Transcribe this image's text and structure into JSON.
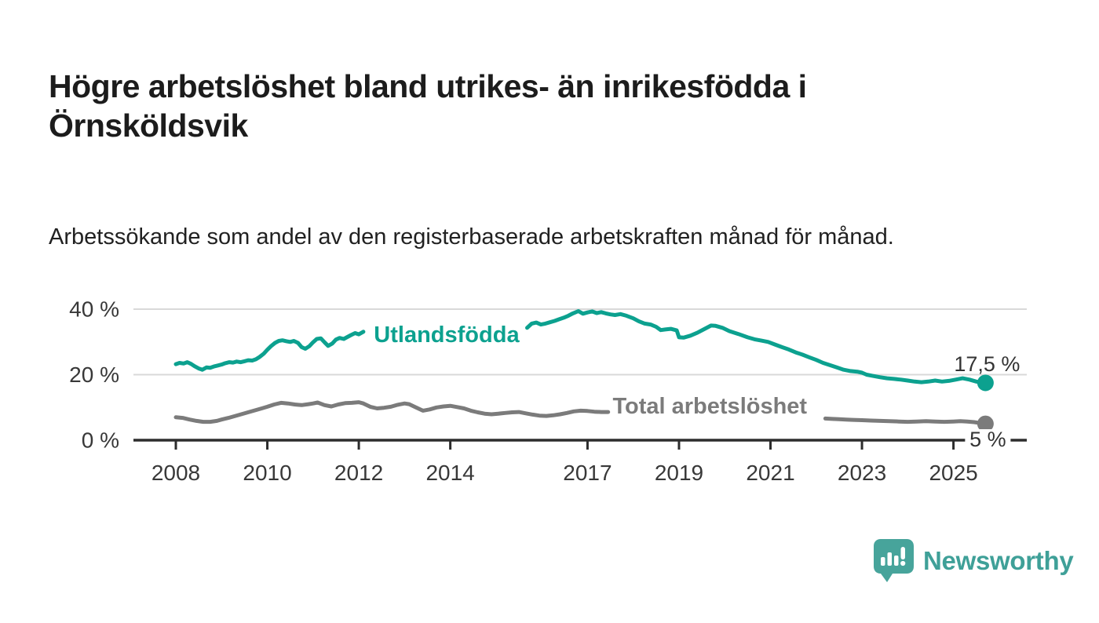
{
  "page": {
    "title": "Högre arbetslöshet bland utrikes- än inrikesfödda i Örnsköldsvik",
    "subtitle": "Arbetssökande som andel av den registerbaserade arbetskraften månad för månad.",
    "background_color": "#ffffff"
  },
  "branding": {
    "logo_text": "Newsworthy",
    "logo_icon": "speech-bubble-bar-chart-icon",
    "logo_color": "#47a49b"
  },
  "chart_data": {
    "type": "line",
    "title": "Högre arbetslöshet bland utrikes- än inrikesfödda i Örnsköldsvik",
    "subtitle": "Arbetssökande som andel av den registerbaserade arbetskraften månad för månad.",
    "unit": "percent of register-based labour force",
    "x_axis": {
      "tick_years": [
        2008,
        2010,
        2012,
        2014,
        2017,
        2019,
        2021,
        2023,
        2025
      ],
      "tick_labels": [
        "2008",
        "2010",
        "2012",
        "2014",
        "2017",
        "2019",
        "2021",
        "2023",
        "2025"
      ],
      "range_years": [
        2007.1,
        2026.6
      ]
    },
    "y_axis": {
      "tick_values": [
        0,
        20,
        40
      ],
      "tick_labels": [
        "0 %",
        "20 %",
        "40 %"
      ],
      "gridline_values": [
        20,
        40
      ],
      "range": [
        0,
        47
      ],
      "grid_color": "#d9d9d9",
      "axis_color": "#2d2d2d",
      "label_color": "#383838"
    },
    "series": [
      {
        "name": "Total arbetslöshet",
        "color": "#7b7b7b",
        "line_label": {
          "text": "Total arbetslöshet",
          "year": 2017.55,
          "value": 10.3
        },
        "end_annotation": "5 %",
        "last_point": {
          "year": 2025.7,
          "value": 5.0
        },
        "segments": [
          [
            [
              2008.0,
              7.0
            ],
            [
              2008.15,
              6.8
            ],
            [
              2008.3,
              6.3
            ],
            [
              2008.45,
              5.9
            ],
            [
              2008.6,
              5.6
            ],
            [
              2008.75,
              5.6
            ],
            [
              2008.9,
              5.9
            ],
            [
              2009.0,
              6.3
            ],
            [
              2009.15,
              6.8
            ],
            [
              2009.3,
              7.4
            ],
            [
              2009.45,
              8.0
            ],
            [
              2009.6,
              8.6
            ],
            [
              2009.75,
              9.2
            ],
            [
              2009.9,
              9.8
            ],
            [
              2010.0,
              10.2
            ],
            [
              2010.15,
              10.9
            ],
            [
              2010.3,
              11.4
            ],
            [
              2010.45,
              11.2
            ],
            [
              2010.6,
              10.9
            ],
            [
              2010.75,
              10.7
            ],
            [
              2010.9,
              11.0
            ],
            [
              2011.0,
              11.2
            ],
            [
              2011.1,
              11.5
            ],
            [
              2011.25,
              10.7
            ],
            [
              2011.4,
              10.3
            ],
            [
              2011.55,
              10.9
            ],
            [
              2011.7,
              11.3
            ],
            [
              2011.85,
              11.4
            ],
            [
              2012.0,
              11.6
            ],
            [
              2012.1,
              11.2
            ],
            [
              2012.25,
              10.2
            ],
            [
              2012.4,
              9.7
            ],
            [
              2012.55,
              9.9
            ],
            [
              2012.7,
              10.2
            ],
            [
              2012.85,
              10.8
            ],
            [
              2013.0,
              11.2
            ],
            [
              2013.1,
              11.0
            ],
            [
              2013.25,
              10.0
            ],
            [
              2013.4,
              9.0
            ],
            [
              2013.55,
              9.4
            ],
            [
              2013.7,
              10.0
            ],
            [
              2013.85,
              10.3
            ],
            [
              2014.0,
              10.5
            ],
            [
              2014.15,
              10.1
            ],
            [
              2014.3,
              9.7
            ],
            [
              2014.45,
              9.0
            ],
            [
              2014.6,
              8.5
            ],
            [
              2014.75,
              8.1
            ],
            [
              2014.9,
              7.9
            ],
            [
              2015.05,
              8.1
            ],
            [
              2015.2,
              8.3
            ],
            [
              2015.35,
              8.5
            ],
            [
              2015.5,
              8.6
            ],
            [
              2015.65,
              8.2
            ],
            [
              2015.8,
              7.8
            ],
            [
              2015.95,
              7.5
            ],
            [
              2016.1,
              7.4
            ],
            [
              2016.25,
              7.6
            ],
            [
              2016.4,
              7.9
            ],
            [
              2016.55,
              8.3
            ],
            [
              2016.7,
              8.8
            ],
            [
              2016.85,
              9.0
            ],
            [
              2017.0,
              8.9
            ],
            [
              2017.15,
              8.7
            ],
            [
              2017.3,
              8.6
            ],
            [
              2017.45,
              8.6
            ]
          ],
          [
            [
              2022.2,
              6.6
            ],
            [
              2022.35,
              6.5
            ],
            [
              2022.5,
              6.4
            ],
            [
              2022.65,
              6.3
            ],
            [
              2022.8,
              6.2
            ],
            [
              2023.0,
              6.1
            ],
            [
              2023.2,
              6.0
            ],
            [
              2023.4,
              5.9
            ],
            [
              2023.6,
              5.8
            ],
            [
              2023.8,
              5.7
            ],
            [
              2024.0,
              5.6
            ],
            [
              2024.2,
              5.7
            ],
            [
              2024.4,
              5.8
            ],
            [
              2024.6,
              5.7
            ],
            [
              2024.8,
              5.6
            ],
            [
              2025.0,
              5.7
            ],
            [
              2025.15,
              5.8
            ],
            [
              2025.3,
              5.7
            ],
            [
              2025.45,
              5.5
            ],
            [
              2025.6,
              5.2
            ],
            [
              2025.7,
              5.0
            ]
          ]
        ]
      },
      {
        "name": "Utlandsfödda",
        "color": "#0ca18f",
        "line_label": {
          "text": "Utlandsfödda",
          "year": 2012.33,
          "value": 32.1
        },
        "end_annotation": "17,5 %",
        "last_point": {
          "year": 2025.7,
          "value": 17.5
        },
        "segments": [
          [
            [
              2008.0,
              23.2
            ],
            [
              2008.08,
              23.6
            ],
            [
              2008.17,
              23.4
            ],
            [
              2008.25,
              23.8
            ],
            [
              2008.33,
              23.3
            ],
            [
              2008.42,
              22.5
            ],
            [
              2008.5,
              21.9
            ],
            [
              2008.58,
              21.5
            ],
            [
              2008.67,
              22.2
            ],
            [
              2008.75,
              22.1
            ],
            [
              2008.83,
              22.5
            ],
            [
              2008.92,
              22.8
            ],
            [
              2009.0,
              23.1
            ],
            [
              2009.08,
              23.5
            ],
            [
              2009.17,
              23.8
            ],
            [
              2009.25,
              23.7
            ],
            [
              2009.33,
              24.0
            ],
            [
              2009.42,
              23.8
            ],
            [
              2009.5,
              24.1
            ],
            [
              2009.58,
              24.4
            ],
            [
              2009.67,
              24.3
            ],
            [
              2009.75,
              24.7
            ],
            [
              2009.83,
              25.4
            ],
            [
              2009.92,
              26.4
            ],
            [
              2010.0,
              27.6
            ],
            [
              2010.08,
              28.7
            ],
            [
              2010.17,
              29.7
            ],
            [
              2010.25,
              30.3
            ],
            [
              2010.33,
              30.5
            ],
            [
              2010.42,
              30.2
            ],
            [
              2010.5,
              30.0
            ],
            [
              2010.58,
              30.3
            ],
            [
              2010.67,
              29.7
            ],
            [
              2010.75,
              28.4
            ],
            [
              2010.83,
              27.9
            ],
            [
              2010.92,
              28.7
            ],
            [
              2011.0,
              29.9
            ],
            [
              2011.08,
              30.9
            ],
            [
              2011.17,
              31.1
            ],
            [
              2011.25,
              29.9
            ],
            [
              2011.33,
              28.8
            ],
            [
              2011.42,
              29.5
            ],
            [
              2011.5,
              30.7
            ],
            [
              2011.58,
              31.2
            ],
            [
              2011.67,
              30.9
            ],
            [
              2011.75,
              31.5
            ],
            [
              2011.83,
              32.1
            ],
            [
              2011.92,
              32.7
            ],
            [
              2012.0,
              32.3
            ],
            [
              2012.1,
              33.1
            ]
          ],
          [
            [
              2015.68,
              34.3
            ],
            [
              2015.78,
              35.6
            ],
            [
              2015.88,
              35.9
            ],
            [
              2015.98,
              35.3
            ],
            [
              2016.08,
              35.6
            ],
            [
              2016.18,
              36.0
            ],
            [
              2016.28,
              36.4
            ],
            [
              2016.38,
              36.9
            ],
            [
              2016.48,
              37.4
            ],
            [
              2016.58,
              38.0
            ],
            [
              2016.68,
              38.7
            ],
            [
              2016.8,
              39.4
            ],
            [
              2016.9,
              38.6
            ],
            [
              2017.0,
              39.0
            ],
            [
              2017.1,
              39.3
            ],
            [
              2017.2,
              38.8
            ],
            [
              2017.3,
              39.1
            ],
            [
              2017.4,
              38.7
            ],
            [
              2017.5,
              38.4
            ],
            [
              2017.6,
              38.2
            ],
            [
              2017.72,
              38.5
            ],
            [
              2017.85,
              38.0
            ],
            [
              2018.0,
              37.2
            ],
            [
              2018.12,
              36.3
            ],
            [
              2018.25,
              35.6
            ],
            [
              2018.38,
              35.3
            ],
            [
              2018.5,
              34.6
            ],
            [
              2018.6,
              33.6
            ],
            [
              2018.7,
              33.8
            ],
            [
              2018.82,
              34.0
            ],
            [
              2018.95,
              33.5
            ],
            [
              2019.0,
              31.4
            ],
            [
              2019.1,
              31.3
            ],
            [
              2019.25,
              31.9
            ],
            [
              2019.4,
              32.8
            ],
            [
              2019.55,
              33.9
            ],
            [
              2019.7,
              35.0
            ],
            [
              2019.8,
              34.9
            ],
            [
              2019.95,
              34.3
            ],
            [
              2020.1,
              33.3
            ],
            [
              2020.3,
              32.4
            ],
            [
              2020.5,
              31.4
            ],
            [
              2020.65,
              30.8
            ],
            [
              2020.8,
              30.4
            ],
            [
              2020.95,
              30.0
            ],
            [
              2021.1,
              29.2
            ],
            [
              2021.25,
              28.4
            ],
            [
              2021.4,
              27.7
            ],
            [
              2021.55,
              26.8
            ],
            [
              2021.7,
              26.1
            ],
            [
              2021.85,
              25.3
            ],
            [
              2022.0,
              24.5
            ],
            [
              2022.15,
              23.6
            ],
            [
              2022.3,
              22.9
            ],
            [
              2022.45,
              22.2
            ],
            [
              2022.6,
              21.5
            ],
            [
              2022.75,
              21.1
            ],
            [
              2022.9,
              20.9
            ],
            [
              2023.0,
              20.6
            ],
            [
              2023.1,
              20.0
            ],
            [
              2023.25,
              19.6
            ],
            [
              2023.4,
              19.2
            ],
            [
              2023.55,
              18.9
            ],
            [
              2023.7,
              18.7
            ],
            [
              2023.85,
              18.5
            ],
            [
              2024.0,
              18.2
            ],
            [
              2024.15,
              17.9
            ],
            [
              2024.3,
              17.7
            ],
            [
              2024.45,
              17.9
            ],
            [
              2024.6,
              18.2
            ],
            [
              2024.75,
              17.9
            ],
            [
              2024.9,
              18.1
            ],
            [
              2025.05,
              18.5
            ],
            [
              2025.2,
              18.9
            ],
            [
              2025.35,
              18.5
            ],
            [
              2025.5,
              17.9
            ],
            [
              2025.6,
              17.6
            ],
            [
              2025.7,
              17.5
            ]
          ]
        ]
      }
    ]
  }
}
